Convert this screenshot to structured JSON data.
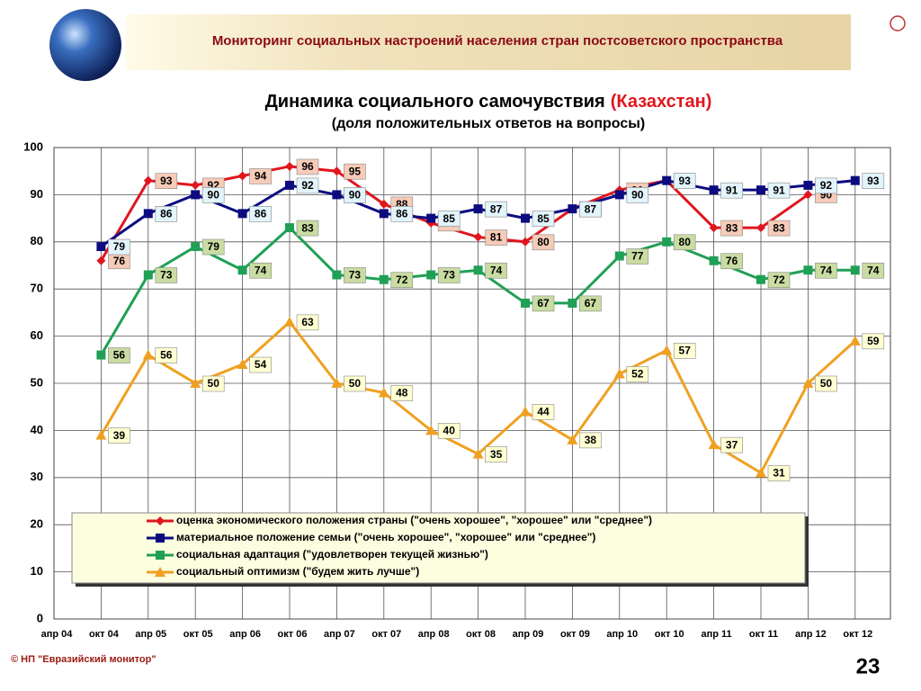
{
  "header": "Мониторинг социальных настроений населения стран постсоветского пространства",
  "footer": "© НП \"Евразийский монитор\"",
  "page_number": 23,
  "chart_data": {
    "type": "line",
    "title": "Динамика социального самочувствия",
    "title_highlight": "(Казахстан)",
    "subtitle": "(доля положительных ответов на вопросы)",
    "categories": [
      "апр 04",
      "окт 04",
      "апр 05",
      "окт 05",
      "апр 06",
      "окт 06",
      "апр 07",
      "окт 07",
      "апр 08",
      "окт 08",
      "апр 09",
      "окт 09",
      "апр 10",
      "окт 10",
      "апр 11",
      "окт 11",
      "апр 12",
      "окт 12"
    ],
    "ylim": [
      0,
      100
    ],
    "yticks": [
      0,
      10,
      20,
      30,
      40,
      50,
      60,
      70,
      80,
      90,
      100
    ],
    "grid": true,
    "series": [
      {
        "name": "оценка экономического положения страны (\"очень хорошее\", \"хорошее\" или \"среднее\")",
        "color": "#e0161e",
        "marker": "diamond",
        "label_fill": "#f6cbb8",
        "values": [
          null,
          76,
          93,
          92,
          94,
          96,
          95,
          88,
          84,
          81,
          80,
          87,
          91,
          93,
          83,
          83,
          90,
          null
        ]
      },
      {
        "name": "материальное положение семьи (\"очень хорошее\", \"хорошее\" или \"среднее\")",
        "color": "#0c0c80",
        "marker": "square",
        "label_fill": "#e2f4fc",
        "values": [
          null,
          79,
          86,
          90,
          86,
          92,
          90,
          86,
          85,
          87,
          85,
          87,
          90,
          93,
          91,
          91,
          92,
          93
        ]
      },
      {
        "name": "социальная адаптация (\"удовлетворен текущей жизнью\")",
        "color": "#1fa055",
        "marker": "square",
        "label_fill": "#c9dca2",
        "values": [
          null,
          56,
          73,
          79,
          74,
          83,
          73,
          72,
          73,
          74,
          67,
          67,
          77,
          80,
          76,
          72,
          74,
          74
        ]
      },
      {
        "name": "социальный оптимизм (\"будем жить лучше\")",
        "color": "#f0a020",
        "marker": "triangle",
        "label_fill": "#ffffd2",
        "values": [
          null,
          39,
          56,
          50,
          54,
          63,
          50,
          48,
          40,
          35,
          44,
          38,
          52,
          57,
          37,
          31,
          50,
          59
        ]
      }
    ]
  }
}
